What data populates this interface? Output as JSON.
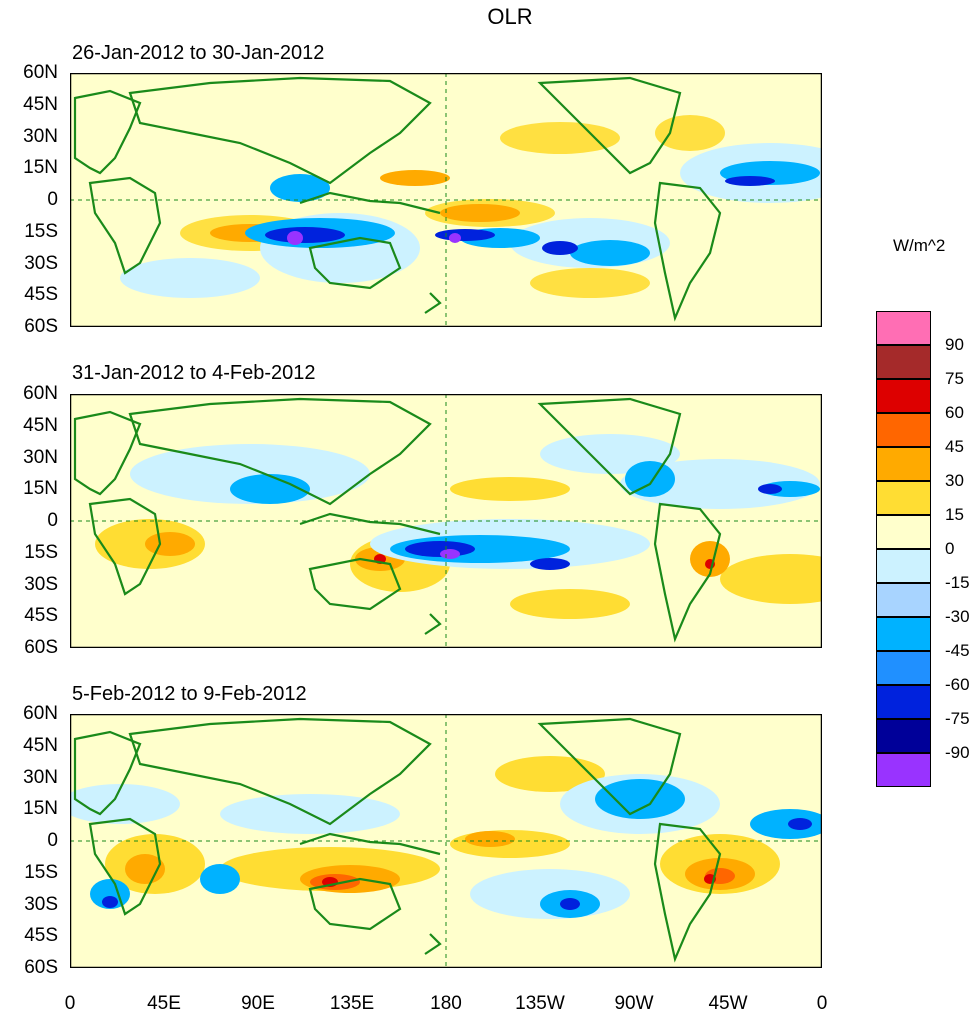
{
  "figure": {
    "title": "OLR",
    "panels": [
      {
        "period": "26-Jan-2012 to 30-Jan-2012"
      },
      {
        "period": "31-Jan-2012 to 4-Feb-2012"
      },
      {
        "period": "5-Feb-2012 to 9-Feb-2012"
      }
    ],
    "latitude_ticks": [
      "60N",
      "45N",
      "30N",
      "15N",
      "0",
      "15S",
      "30S",
      "45S",
      "60S"
    ],
    "longitude_ticks": [
      "0",
      "45E",
      "90E",
      "135E",
      "180",
      "135W",
      "90W",
      "45W",
      "0"
    ]
  },
  "colorbar": {
    "units": "W/m^2",
    "labels": [
      "90",
      "75",
      "60",
      "45",
      "30",
      "15",
      "0",
      "-15",
      "-30",
      "-45",
      "-60",
      "-75",
      "-90"
    ],
    "colors": [
      "#ff6eb4",
      "#a52a2a",
      "#dd0000",
      "#ff6600",
      "#ffaa00",
      "#ffdd33",
      "#ffffcc",
      "#ccf2ff",
      "#a8d4ff",
      "#00b2ff",
      "#2090ff",
      "#0022dd",
      "#000099",
      "#9933ff"
    ]
  },
  "colors": {
    "land_outline": "#1a8a1a",
    "ocean_background": "#ffffcc"
  }
}
